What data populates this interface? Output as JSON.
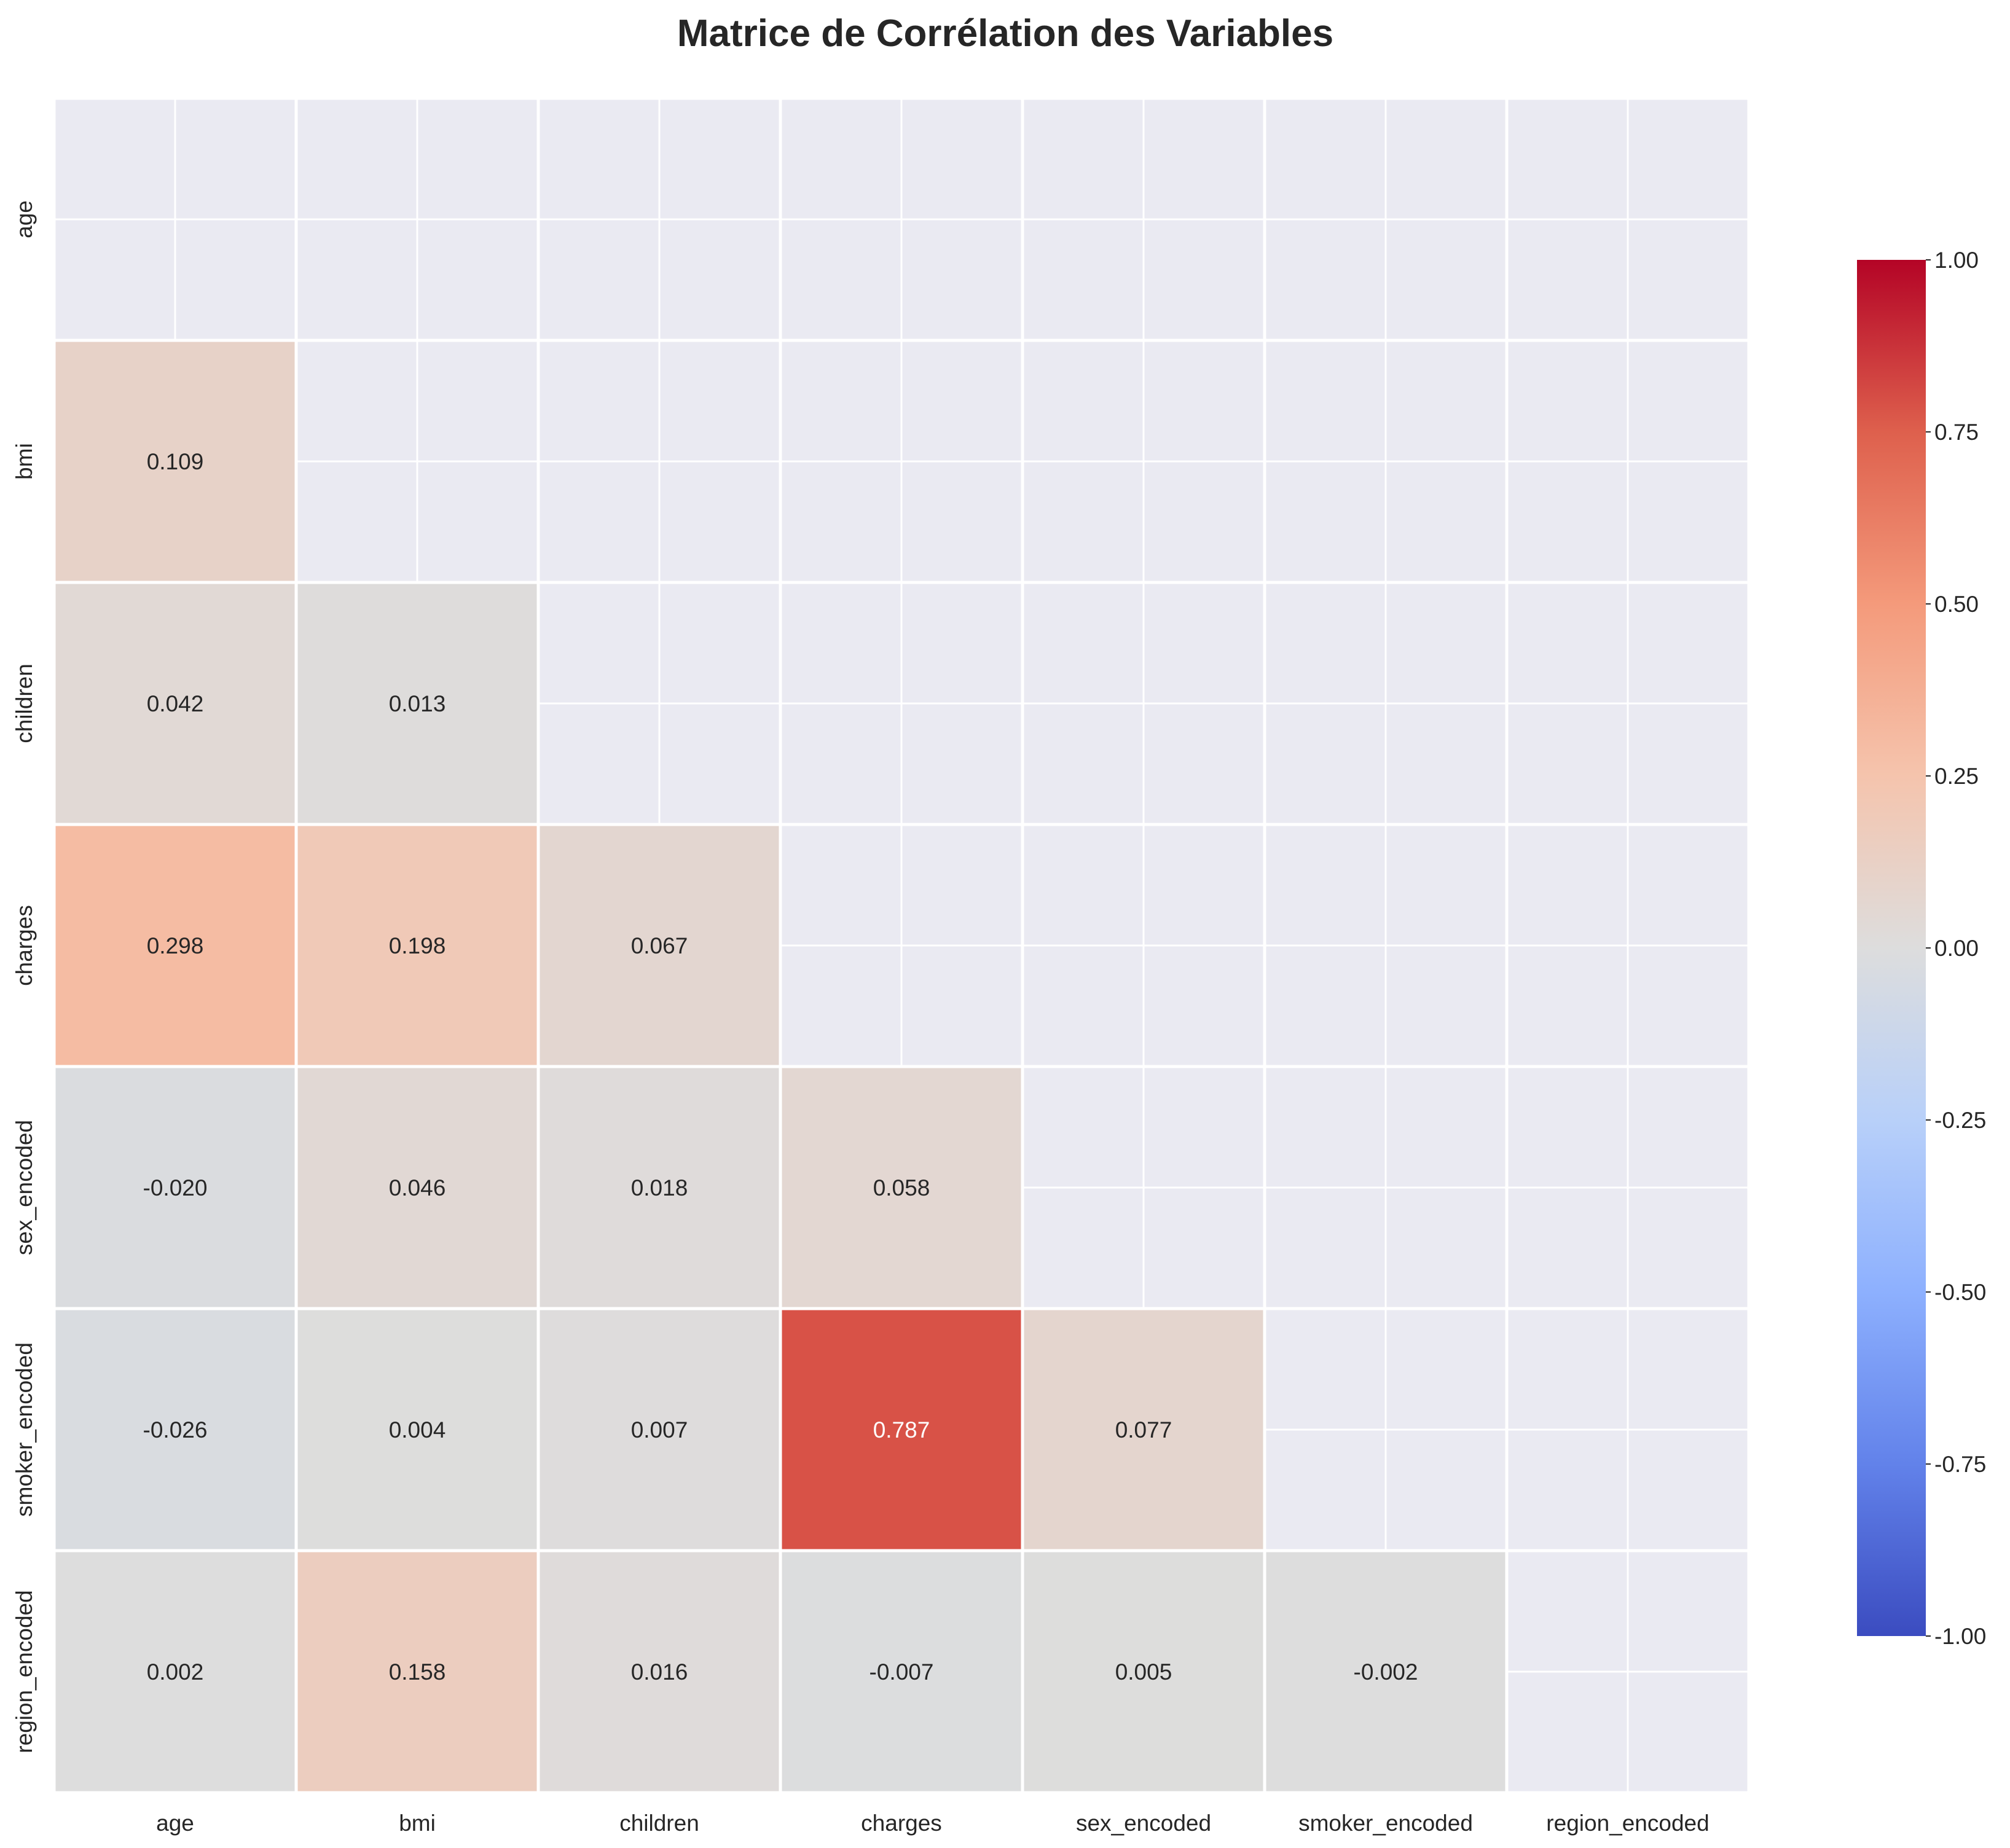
{
  "chart_data": {
    "type": "heatmap",
    "title": "Matrice de Corrélation des Variables",
    "variables": [
      "age",
      "bmi",
      "children",
      "charges",
      "sex_encoded",
      "smoker_encoded",
      "region_encoded"
    ],
    "mask": "upper-triangle-including-diagonal",
    "cells": [
      {
        "row": 1,
        "col": 0,
        "value": 0.109,
        "label": "0.109"
      },
      {
        "row": 2,
        "col": 0,
        "value": 0.042,
        "label": "0.042"
      },
      {
        "row": 2,
        "col": 1,
        "value": 0.013,
        "label": "0.013"
      },
      {
        "row": 3,
        "col": 0,
        "value": 0.298,
        "label": "0.298"
      },
      {
        "row": 3,
        "col": 1,
        "value": 0.198,
        "label": "0.198"
      },
      {
        "row": 3,
        "col": 2,
        "value": 0.067,
        "label": "0.067"
      },
      {
        "row": 4,
        "col": 0,
        "value": -0.02,
        "label": "-0.020"
      },
      {
        "row": 4,
        "col": 1,
        "value": 0.046,
        "label": "0.046"
      },
      {
        "row": 4,
        "col": 2,
        "value": 0.018,
        "label": "0.018"
      },
      {
        "row": 4,
        "col": 3,
        "value": 0.058,
        "label": "0.058"
      },
      {
        "row": 5,
        "col": 0,
        "value": -0.026,
        "label": "-0.026"
      },
      {
        "row": 5,
        "col": 1,
        "value": 0.004,
        "label": "0.004"
      },
      {
        "row": 5,
        "col": 2,
        "value": 0.007,
        "label": "0.007"
      },
      {
        "row": 5,
        "col": 3,
        "value": 0.787,
        "label": "0.787"
      },
      {
        "row": 5,
        "col": 4,
        "value": 0.077,
        "label": "0.077"
      },
      {
        "row": 6,
        "col": 0,
        "value": 0.002,
        "label": "0.002"
      },
      {
        "row": 6,
        "col": 1,
        "value": 0.158,
        "label": "0.158"
      },
      {
        "row": 6,
        "col": 2,
        "value": 0.016,
        "label": "0.016"
      },
      {
        "row": 6,
        "col": 3,
        "value": -0.007,
        "label": "-0.007"
      },
      {
        "row": 6,
        "col": 4,
        "value": 0.005,
        "label": "0.005"
      },
      {
        "row": 6,
        "col": 5,
        "value": -0.002,
        "label": "-0.002"
      }
    ],
    "colorbar": {
      "range": [
        -1.0,
        1.0
      ],
      "ticks": [
        "1.00",
        "0.75",
        "0.50",
        "0.25",
        "0.00",
        "-0.25",
        "-0.50",
        "-0.75",
        "-1.00"
      ],
      "colormap": "coolwarm"
    },
    "colors": {
      "background": "#eaeaf2",
      "grid": "#ffffff",
      "text_dark": "#262626",
      "text_light": "#ffffff"
    },
    "grid": true,
    "legend": "right"
  }
}
